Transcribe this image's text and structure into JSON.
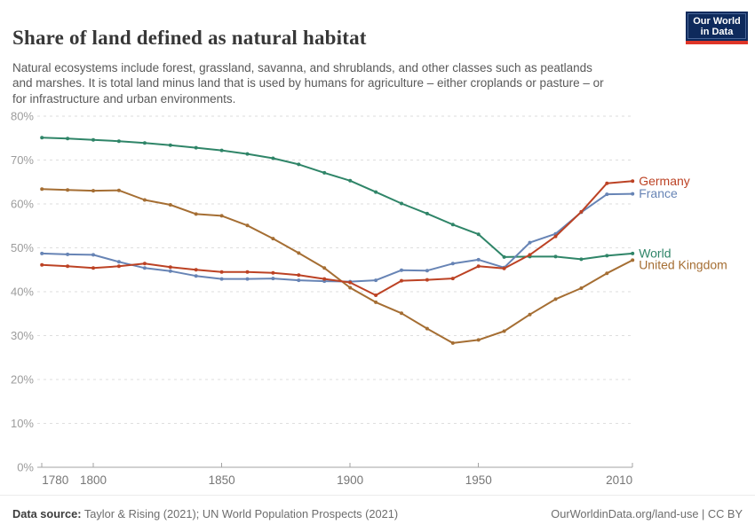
{
  "header": {
    "title": "Share of land defined as natural habitat",
    "subtitle": "Natural ecosystems include forest, grassland, savanna, and shrublands, and other classes such as peatlands\nand marshes. It is total land minus land that is used by humans for agriculture – either croplands or pasture – or\nfor infrastructure and urban environments.",
    "logo": {
      "line1": "Our World",
      "line2": "in Data",
      "bg_color": "#0E2A5C",
      "stripe_color": "#DE3528"
    }
  },
  "chart_data": {
    "type": "line",
    "title": "Share of land defined as natural habitat",
    "x": [
      1780,
      1790,
      1800,
      1810,
      1820,
      1830,
      1840,
      1850,
      1860,
      1870,
      1880,
      1890,
      1900,
      1910,
      1920,
      1930,
      1940,
      1950,
      1960,
      1970,
      1980,
      1990,
      2000,
      2010
    ],
    "series": [
      {
        "name": "Germany",
        "color": "#BC4224",
        "values": [
          46.1,
          45.8,
          45.4,
          45.8,
          46.4,
          45.6,
          45.0,
          44.5,
          44.5,
          44.3,
          43.8,
          42.9,
          42.1,
          39.2,
          42.5,
          42.7,
          43.0,
          45.8,
          45.3,
          48.4,
          52.6,
          58.2,
          64.7,
          65.2
        ]
      },
      {
        "name": "France",
        "color": "#6784B5",
        "values": [
          48.7,
          48.5,
          48.4,
          46.8,
          45.4,
          44.7,
          43.6,
          42.9,
          42.9,
          43.0,
          42.6,
          42.4,
          42.3,
          42.6,
          44.9,
          44.8,
          46.4,
          47.3,
          45.5,
          51.2,
          53.2,
          58.1,
          62.2,
          62.3
        ]
      },
      {
        "name": "World",
        "color": "#2F8568",
        "values": [
          75.1,
          74.9,
          74.6,
          74.3,
          73.9,
          73.4,
          72.8,
          72.2,
          71.4,
          70.4,
          69.0,
          67.1,
          65.3,
          62.7,
          60.1,
          57.8,
          55.3,
          53.1,
          47.9,
          48.0,
          48.0,
          47.4,
          48.2,
          48.7
        ]
      },
      {
        "name": "United Kingdom",
        "color": "#A56E33",
        "values": [
          63.4,
          63.2,
          63.0,
          63.1,
          60.9,
          59.8,
          57.7,
          57.3,
          55.1,
          52.1,
          48.8,
          45.4,
          40.9,
          37.6,
          35.1,
          31.6,
          28.3,
          29.0,
          31.0,
          34.8,
          38.3,
          40.8,
          44.2,
          47.2
        ]
      }
    ],
    "xticks": [
      1780,
      1800,
      1850,
      1900,
      1950,
      2010
    ],
    "yticks": [
      0,
      10,
      20,
      30,
      40,
      50,
      60,
      70,
      80
    ],
    "ytick_suffix": "%",
    "xlim": [
      1780,
      2010
    ],
    "ylim": [
      0,
      80
    ],
    "grid": "horizontal-dashed",
    "legend_position": "right-of-line-ends"
  },
  "footer": {
    "source_label": "Data source:",
    "source_value": " Taylor & Rising (2021); UN World Population Prospects (2021)",
    "link": "OurWorldinData.org/land-use | CC BY"
  }
}
